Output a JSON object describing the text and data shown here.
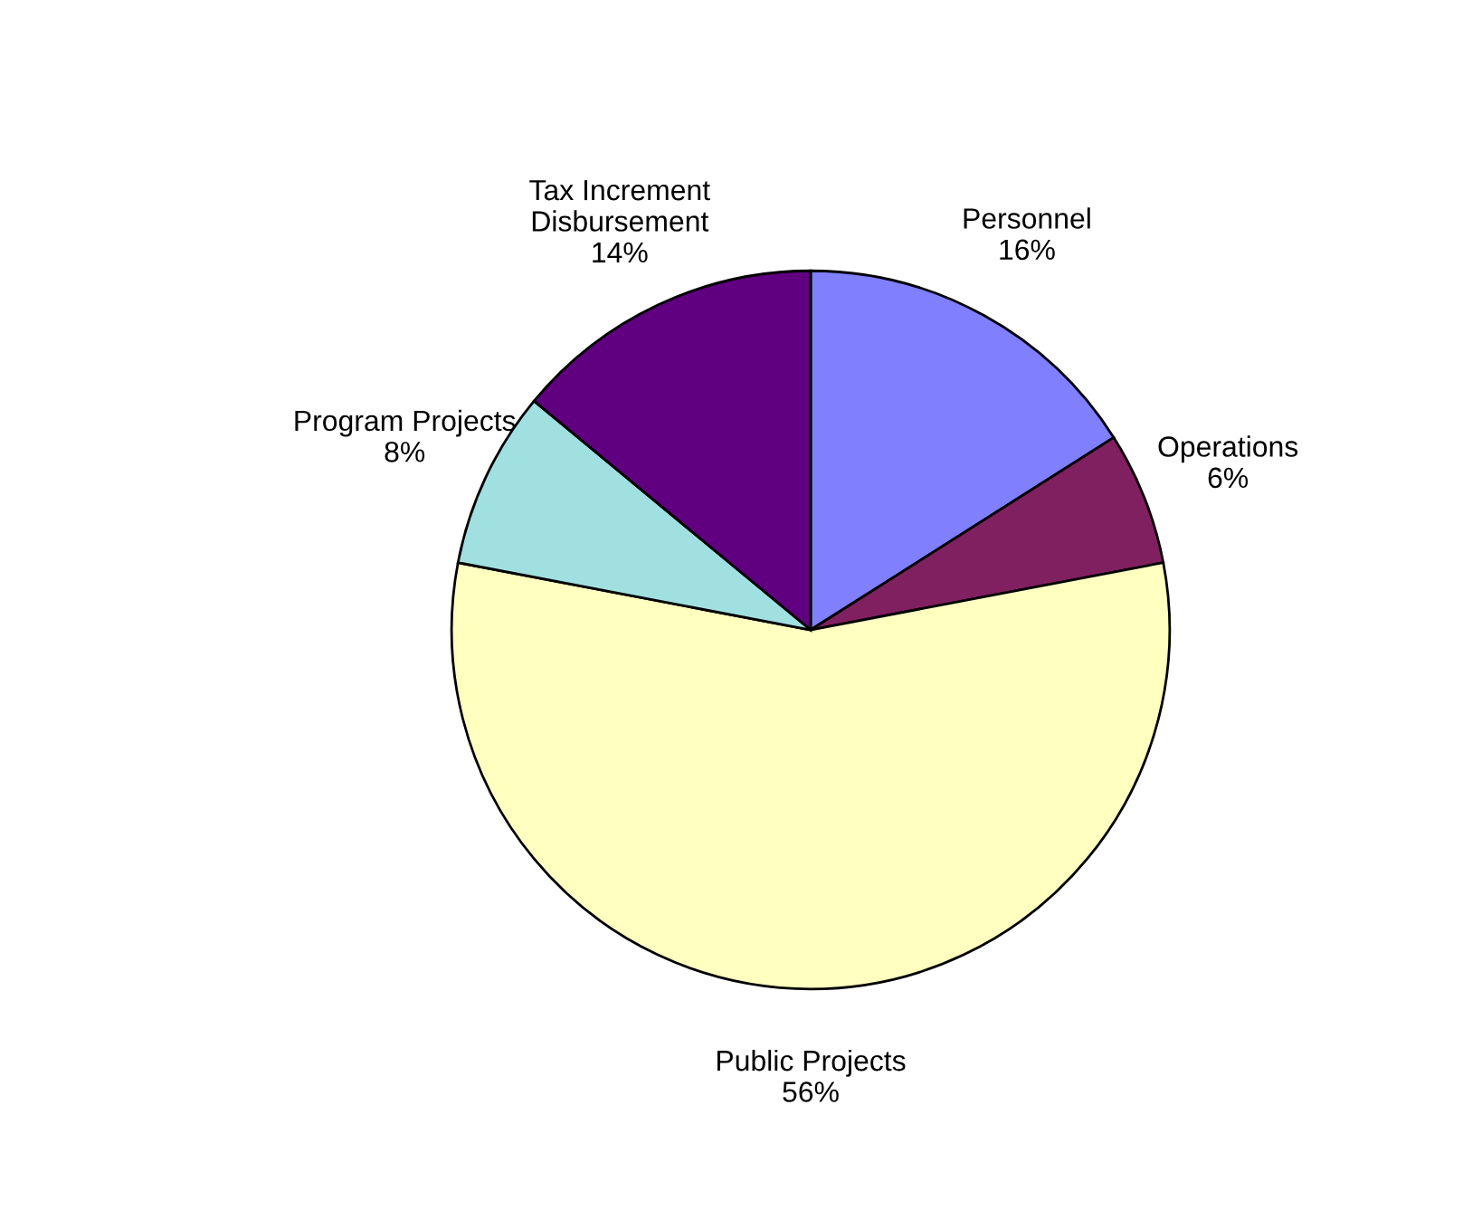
{
  "chart_data": {
    "type": "pie",
    "categories": [
      "Personnel",
      "Operations",
      "Public Projects",
      "Program Projects",
      "Tax Increment\nDisbursement"
    ],
    "values": [
      16,
      6,
      56,
      8,
      14
    ],
    "colors": [
      "#8080ff",
      "#802060",
      "#ffffc0",
      "#a0e0e0",
      "#600080"
    ],
    "value_labels": [
      "16%",
      "6%",
      "56%",
      "8%",
      "14%"
    ],
    "legend": false
  }
}
